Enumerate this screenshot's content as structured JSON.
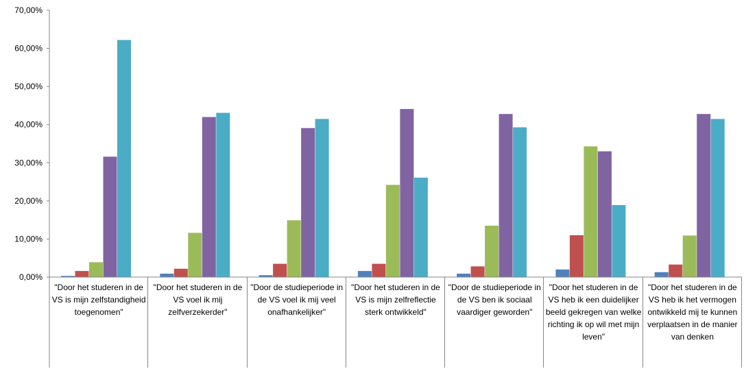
{
  "chart_data": {
    "type": "bar",
    "ylim": [
      0,
      70
    ],
    "y_tick_labels": [
      "0,00%",
      "10,00%",
      "20,00%",
      "30,00%",
      "40,00%",
      "50,00%",
      "60,00%",
      "70,00%"
    ],
    "grid": false,
    "legend": "none",
    "colors": [
      "#4f81bd",
      "#c0504d",
      "#9bbb59",
      "#8064a2",
      "#4bacc6"
    ],
    "categories": [
      "\"Door het studeren in de VS is mijn zelfstandigheid toegenomen\"",
      "\"Door het studeren in de VS voel ik mij zelfverzekerder\"",
      "\"Door de studieperiode in de VS voel ik mij veel onafhankelijker\"",
      "\"Door het studeren in de VS is mijn zelfreflectie sterk ontwikkeld\"",
      "\"Door de studieperiode in de VS ben ik sociaal vaardiger geworden\"",
      "\"Door het studeren in de VS heb ik een duidelijker beeld gekregen van welke richting ik op wil met mijn leven\"",
      "\"Door het studeren in de VS heb ik het vermogen ontwikkeld mij te kunnen verplaatsen in de manier van denken"
    ],
    "series": [
      {
        "values": [
          0.3,
          0.9,
          0.5,
          1.6,
          0.9,
          2.0,
          1.3
        ]
      },
      {
        "values": [
          1.6,
          2.2,
          3.5,
          3.5,
          2.8,
          11.0,
          3.3
        ]
      },
      {
        "values": [
          3.9,
          11.6,
          14.9,
          24.2,
          13.5,
          34.3,
          10.9
        ]
      },
      {
        "values": [
          31.6,
          42.0,
          39.1,
          44.1,
          42.8,
          33.0,
          42.8
        ]
      },
      {
        "values": [
          62.2,
          43.1,
          41.5,
          26.1,
          39.3,
          18.9,
          41.5
        ]
      }
    ]
  }
}
